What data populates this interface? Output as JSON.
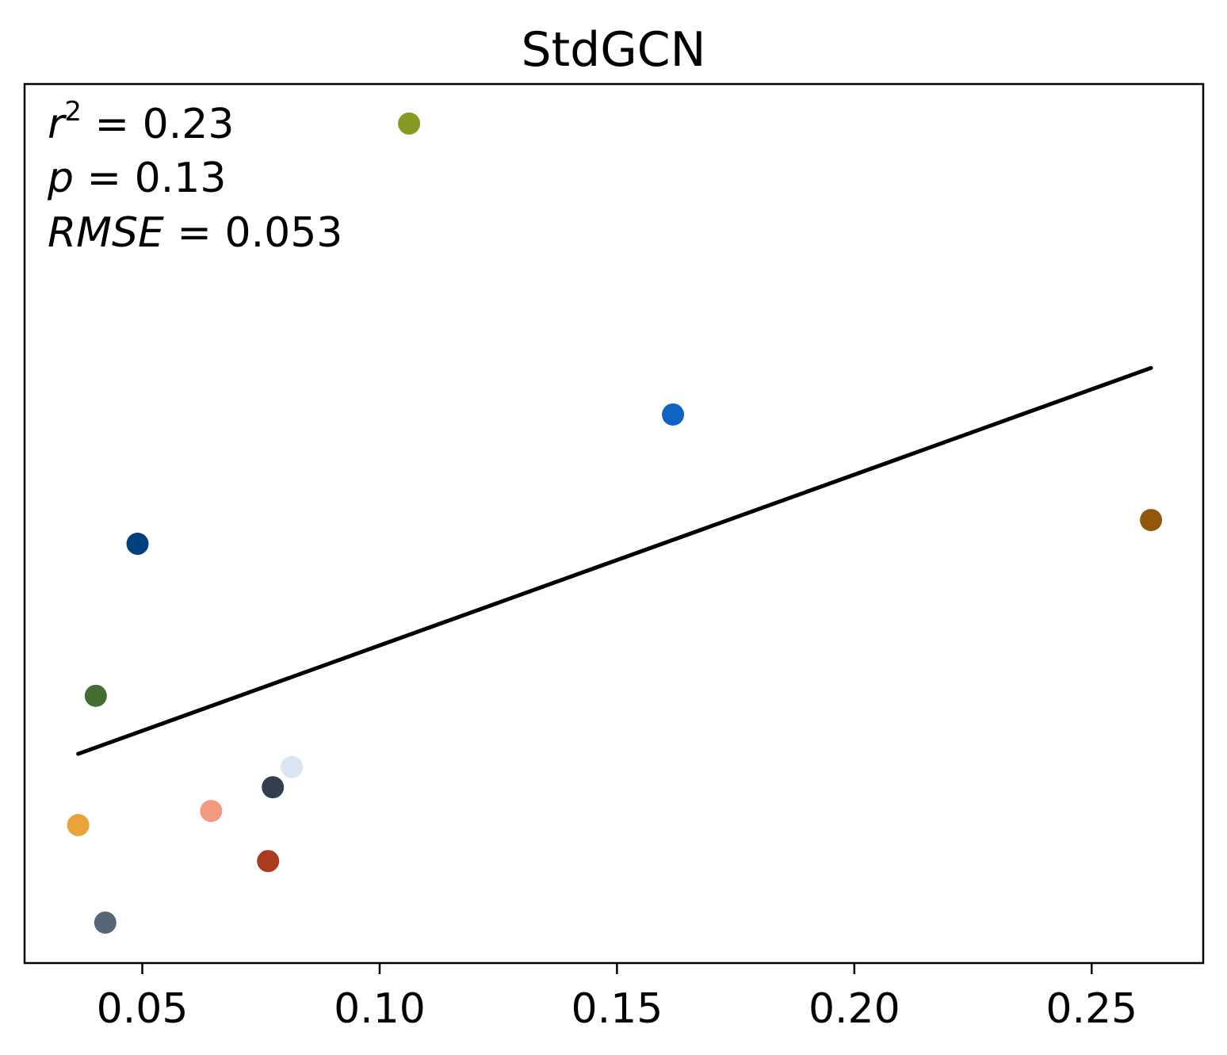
{
  "chart_data": {
    "type": "scatter",
    "title": "StdGCN",
    "xlabel": "",
    "ylabel": "",
    "xlim": [
      0.0252,
      0.2735
    ],
    "ylim": [
      0.0,
      1.0
    ],
    "xticks": [
      0.05,
      0.1,
      0.15,
      0.2,
      0.25
    ],
    "xtick_labels": [
      "0.05",
      "0.10",
      "0.15",
      "0.20",
      "0.25"
    ],
    "yticks_visible": false,
    "grid": false,
    "annotations": {
      "r2": "0.23",
      "p": "0.13",
      "rmse": "0.053"
    },
    "points": [
      {
        "x": 0.1062,
        "y": 0.955,
        "color": "#859b22"
      },
      {
        "x": 0.1618,
        "y": 0.624,
        "color": "#0f63c2"
      },
      {
        "x": 0.2625,
        "y": 0.504,
        "color": "#92570b"
      },
      {
        "x": 0.049,
        "y": 0.477,
        "color": "#00407f"
      },
      {
        "x": 0.0402,
        "y": 0.304,
        "color": "#436e30"
      },
      {
        "x": 0.0815,
        "y": 0.223,
        "color": "#dbe5f1"
      },
      {
        "x": 0.0775,
        "y": 0.2,
        "color": "#343f4d"
      },
      {
        "x": 0.0645,
        "y": 0.173,
        "color": "#f29a80"
      },
      {
        "x": 0.0365,
        "y": 0.157,
        "color": "#e8a33a"
      },
      {
        "x": 0.0765,
        "y": 0.116,
        "color": "#a93c1d"
      },
      {
        "x": 0.0422,
        "y": 0.046,
        "color": "#566678"
      }
    ],
    "fit_line": {
      "x": [
        0.0365,
        0.2625
      ],
      "y": [
        0.238,
        0.677
      ],
      "color": "#000000"
    }
  }
}
